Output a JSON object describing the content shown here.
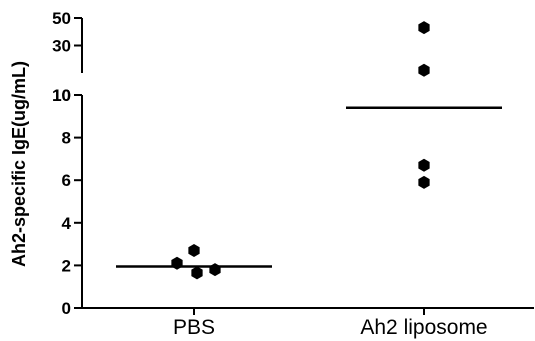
{
  "chart_data": {
    "type": "scatter",
    "title": "",
    "xlabel": "",
    "ylabel": "Ah2-specific IgE(ug/mL)",
    "categories": [
      "PBS",
      "Ah2 liposome"
    ],
    "y_axis": {
      "segments": [
        {
          "range": [
            0,
            10
          ],
          "ticks": [
            0,
            2,
            4,
            6,
            8,
            10
          ],
          "tick_labels": [
            "0",
            "2",
            "4",
            "6",
            "8",
            "10"
          ]
        },
        {
          "range": [
            10,
            50
          ],
          "ticks": [
            10,
            30,
            50
          ],
          "tick_labels": [
            "10",
            "30",
            "50"
          ]
        }
      ],
      "broken": true
    },
    "series": [
      {
        "category": "PBS",
        "points": [
          2.1,
          2.7,
          1.65,
          1.8
        ],
        "mean": 1.95
      },
      {
        "category": "Ah2 liposome",
        "points": [
          43,
          12,
          6.7,
          5.9
        ],
        "mean": 9.4
      }
    ],
    "grid": false,
    "legend": "none",
    "colors": {
      "points": "#000000",
      "mean_line": "#000000",
      "axis": "#000000"
    }
  }
}
